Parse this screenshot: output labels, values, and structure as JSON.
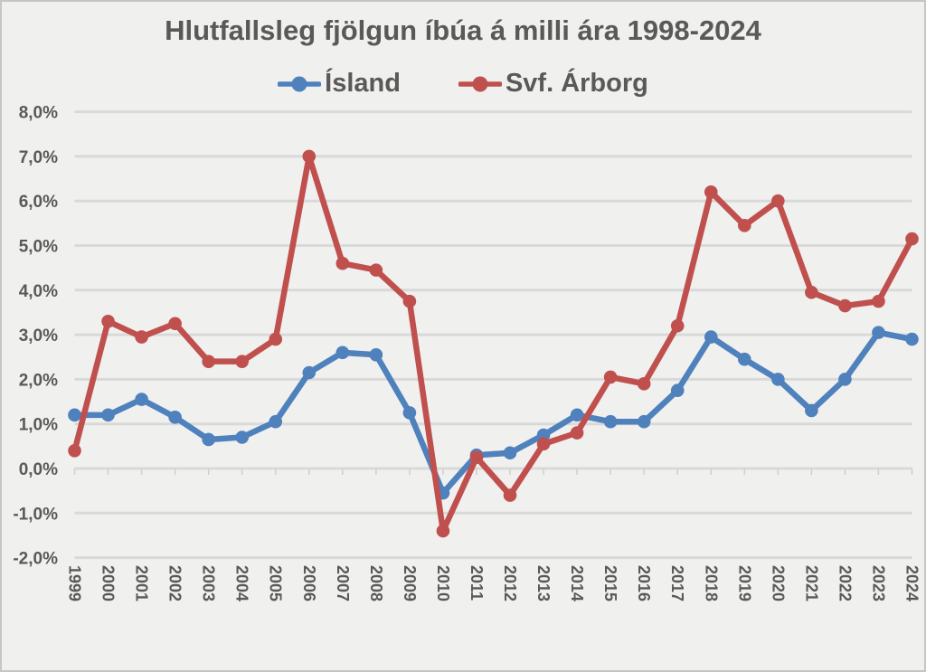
{
  "chart_data": {
    "type": "line",
    "title": "Hlutfallsleg fjölgun íbúa á milli ára 1998-2024",
    "categories": [
      "1999",
      "2000",
      "2001",
      "2002",
      "2003",
      "2004",
      "2005",
      "2006",
      "2007",
      "2008",
      "2009",
      "2010",
      "2011",
      "2012",
      "2013",
      "2014",
      "2015",
      "2016",
      "2017",
      "2018",
      "2019",
      "2020",
      "2021",
      "2022",
      "2023",
      "2024"
    ],
    "series": [
      {
        "name": "Ísland",
        "color": "#4F81BD",
        "values": [
          1.2,
          1.2,
          1.55,
          1.15,
          0.65,
          0.7,
          1.05,
          2.15,
          2.6,
          2.55,
          1.25,
          -0.55,
          0.3,
          0.35,
          0.75,
          1.2,
          1.05,
          1.05,
          1.75,
          2.95,
          2.45,
          2.0,
          1.3,
          2.0,
          3.05,
          2.9
        ]
      },
      {
        "name": "Svf. Árborg",
        "color": "#C0504D",
        "values": [
          0.4,
          3.3,
          2.95,
          3.25,
          2.4,
          2.4,
          2.9,
          7.0,
          4.6,
          4.45,
          3.75,
          -1.4,
          0.25,
          -0.6,
          0.55,
          0.8,
          2.05,
          1.9,
          3.2,
          6.2,
          5.45,
          6.0,
          3.95,
          3.65,
          3.75,
          5.15
        ]
      }
    ],
    "y_axis": {
      "min": -2,
      "max": 8,
      "step": 1,
      "tick_labels": [
        "8,0%",
        "7,0%",
        "6,0%",
        "5,0%",
        "4,0%",
        "3,0%",
        "2,0%",
        "1,0%",
        "0,0%",
        "-1,0%",
        "-2,0%"
      ],
      "tick_values": [
        8,
        7,
        6,
        5,
        4,
        3,
        2,
        1,
        0,
        -1,
        -2
      ]
    },
    "grid": true,
    "legend_position": "top",
    "colors": {
      "text": "#595959",
      "gridline": "#d9d9d9",
      "background": "#f0f0ef"
    }
  }
}
